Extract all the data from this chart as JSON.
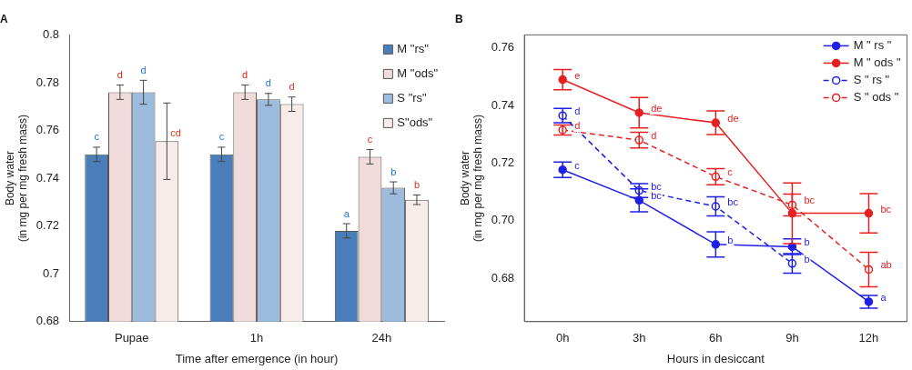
{
  "chart_data": [
    {
      "type": "bar",
      "title": "A",
      "xlabel": "Time after emergence (in hour)",
      "ylabel": "Body water\n(in mg per mg fresh mass)",
      "categories": [
        "Pupae",
        "1h",
        "24h"
      ],
      "ylim": [
        0.68,
        0.8
      ],
      "yticks": [
        0.68,
        0.7,
        0.72,
        0.74,
        0.76,
        0.78,
        0.8
      ],
      "grid": false,
      "legend": "top right",
      "series": [
        {
          "name": "M \"rs\"",
          "color": "#4a7ebb",
          "values": [
            0.75,
            0.75,
            0.718
          ],
          "errors": [
            0.003,
            0.003,
            0.003
          ],
          "value_labels": [
            "c",
            "c",
            "a"
          ]
        },
        {
          "name": "M \"ods\"",
          "color": "#f2dcdb",
          "values": [
            0.776,
            0.776,
            0.749
          ],
          "errors": [
            0.003,
            0.003,
            0.003
          ],
          "value_labels": [
            "d",
            "d",
            "c"
          ]
        },
        {
          "name": "S \"rs\"",
          "color": "#9dbbdc",
          "values": [
            0.776,
            0.773,
            0.736
          ],
          "errors": [
            0.005,
            0.0025,
            0.0025
          ],
          "value_labels": [
            "d",
            "d",
            "b"
          ]
        },
        {
          "name": "S\"ods\"",
          "color": "#f8ecea",
          "values": [
            0.7555,
            0.771,
            0.731
          ],
          "errors": [
            0.016,
            0.003,
            0.002
          ],
          "value_labels": [
            "cd",
            "d",
            "b"
          ]
        }
      ]
    },
    {
      "type": "line",
      "title": "B",
      "xlabel": "Hours in desiccant",
      "ylabel": "Body water\n(in mg per mg fresh mass)",
      "categories": [
        "0h",
        "3h",
        "6h",
        "9h",
        "12h"
      ],
      "ylim": [
        0.665,
        0.7645
      ],
      "yticks": [
        0.68,
        {
          "value": 0.7,
          "label": "0.70"
        },
        0.72,
        0.74,
        0.76
      ],
      "grid": false,
      "legend": "top right",
      "marker": "circle",
      "series": [
        {
          "name": "M \" rs \"",
          "color": "#1f1fe6",
          "line_style": "solid",
          "values": [
            0.7177,
            0.7071,
            0.6918,
            0.691,
            0.6719
          ],
          "errors": [
            0.0027,
            0.004,
            0.0044,
            0.0027,
            0.0022
          ],
          "value_labels": [
            "c",
            "bc",
            "b",
            "b",
            "a"
          ]
        },
        {
          "name": "M \" ods \"",
          "color": "#e62020",
          "line_style": "solid",
          "values": [
            0.749,
            0.7375,
            0.734,
            0.7026,
            0.7026
          ],
          "errors": [
            0.0035,
            0.0053,
            0.0041,
            0.0105,
            0.0068
          ],
          "value_labels": [
            "e",
            "de",
            "de",
            null,
            "bc"
          ]
        },
        {
          "name": "S \" rs \"",
          "color": "#1f1fe6",
          "line_style": "dashed",
          "values": [
            0.7365,
            0.7105,
            0.705,
            0.6852,
            null
          ],
          "errors": [
            0.0025,
            0.0024,
            0.0033,
            0.0034,
            null
          ],
          "value_labels": [
            "d",
            "bc",
            "bc",
            "b",
            null
          ]
        },
        {
          "name": "S \" ods \"",
          "color": "#e62020",
          "line_style": "dashed",
          "values": [
            0.7315,
            0.728,
            0.7153,
            0.7055,
            0.6831
          ],
          "errors": [
            0.0017,
            0.0027,
            0.0028,
            0.0038,
            0.006
          ],
          "value_labels": [
            "d",
            "d",
            "c",
            "bc",
            "ab"
          ]
        }
      ]
    }
  ]
}
